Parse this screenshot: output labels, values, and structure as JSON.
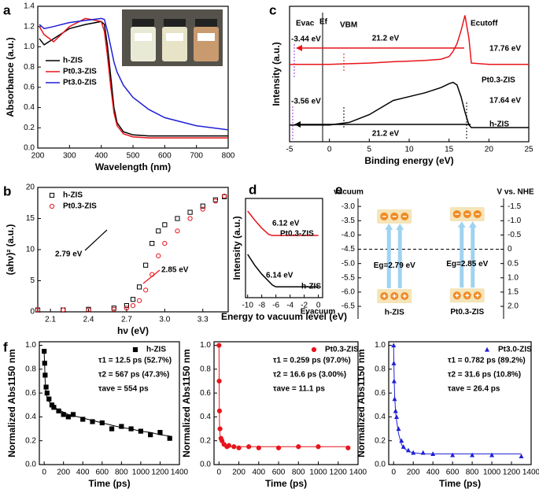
{
  "chart_data": [
    {
      "type": "line",
      "panel": "a",
      "xlabel": "Wavelength (nm)",
      "ylabel": "Absorbance (a.u.)",
      "x": [
        205,
        220,
        250,
        300,
        350,
        400,
        410,
        420,
        430,
        440,
        450,
        470,
        500,
        550,
        600,
        700,
        800
      ],
      "series": [
        {
          "name": "h-ZIS",
          "color": "#000000",
          "values": [
            1.08,
            1.02,
            1.08,
            1.18,
            1.22,
            1.25,
            1.22,
            1.0,
            0.7,
            0.4,
            0.25,
            0.16,
            0.13,
            0.12,
            0.12,
            0.12,
            0.12
          ]
        },
        {
          "name": "Pt0.3-ZIS",
          "color": "#e8141b",
          "values": [
            1.2,
            1.12,
            1.05,
            1.2,
            1.28,
            1.25,
            1.15,
            0.9,
            0.6,
            0.35,
            0.22,
            0.14,
            0.11,
            0.1,
            0.1,
            0.1,
            0.1
          ]
        },
        {
          "name": "Pt3.0-ZIS",
          "color": "#1f1fd6",
          "values": [
            1.22,
            1.18,
            1.2,
            1.24,
            1.26,
            1.28,
            1.27,
            1.15,
            1.0,
            0.85,
            0.75,
            0.62,
            0.5,
            0.38,
            0.3,
            0.22,
            0.18
          ]
        }
      ],
      "xlim": [
        200,
        800
      ],
      "xticks": [
        200,
        300,
        400,
        500,
        600,
        700,
        800
      ],
      "ylim": [
        0,
        1.4
      ],
      "yticks": [
        {
          "value": 0,
          "label": "0.0"
        },
        0.2,
        0.4,
        0.6,
        0.8,
        {
          "value": 1,
          "label": "1.0"
        },
        1.2,
        1.4
      ],
      "legend": "center left"
    },
    {
      "type": "scatter",
      "panel": "b",
      "xlabel": "hν (eV)",
      "ylabel": "(ahν)² (a.u.)",
      "x": [
        2.0,
        2.2,
        2.4,
        2.6,
        2.7,
        2.75,
        2.8,
        2.85,
        2.9,
        2.95,
        3.0,
        3.1,
        3.2,
        3.3,
        3.4,
        3.47
      ],
      "series": [
        {
          "name": "h-ZIS",
          "color": "#000000",
          "marker": "square-open",
          "values": [
            0.3,
            0.3,
            0.4,
            0.6,
            1.0,
            2.0,
            4.0,
            7.5,
            11,
            13,
            14,
            15,
            16,
            17,
            18,
            18.5
          ]
        },
        {
          "name": "Pt0.3-ZIS",
          "color": "#e8141b",
          "marker": "circle-open",
          "values": [
            0.3,
            0.3,
            0.3,
            0.4,
            0.6,
            1.0,
            1.8,
            3.5,
            6,
            9,
            11,
            13,
            15,
            16.5,
            17.8,
            18.6
          ]
        }
      ],
      "xlim": [
        2.0,
        3.5
      ],
      "xticks": [
        2.1,
        2.4,
        2.7,
        {
          "value": 3,
          "label": "3.0"
        },
        3.3
      ],
      "ylim": [
        0,
        20
      ],
      "yticks": [
        0,
        5,
        10,
        15,
        20
      ],
      "legend": "upper left",
      "annotations": [
        {
          "text": "2.79 eV",
          "color": "#000000"
        },
        {
          "text": "2.85 eV",
          "color": "#e8141b"
        }
      ]
    },
    {
      "type": "line",
      "panel": "c",
      "xlabel": "Binding energy (eV)",
      "ylabel": "Intensity (a.u.)",
      "x": [
        -5,
        0,
        2.5,
        5,
        8,
        10,
        12,
        14,
        15,
        15.5,
        16,
        16.5,
        17,
        17.5,
        17.8,
        20,
        25
      ],
      "series": [
        {
          "color": "#e8141b",
          "values": [
            6,
            6,
            6.05,
            6.1,
            6.2,
            6.25,
            6.3,
            6.4,
            6.6,
            7,
            7.6,
            8.6,
            9.8,
            8,
            6.1,
            6,
            6
          ]
        },
        {
          "color": "#000000",
          "values": [
            1.3,
            1.3,
            1.5,
            2.1,
            3.2,
            3.5,
            3.8,
            4.2,
            4.5,
            4.6,
            4.4,
            3.5,
            2.3,
            1.3,
            1.1,
            1.1,
            1.1
          ]
        }
      ],
      "xlim": [
        -5,
        25
      ],
      "xticks": [
        -5,
        0,
        5,
        10,
        15,
        20,
        25
      ],
      "ylim": [
        0,
        10.5
      ],
      "annotations": [
        {
          "text": "Evac",
          "color": "#9b30d9"
        },
        {
          "text": "Ef",
          "color": "#000000"
        },
        {
          "text": "VBM",
          "color": "#000000"
        },
        {
          "text": "Ecutoff",
          "color": "#000000"
        },
        {
          "text": "-3.44 eV",
          "color": "#9b30d9"
        },
        {
          "text": "21.2 eV",
          "color": "#000000"
        },
        {
          "text": "17.76 eV",
          "color": "#000000"
        },
        {
          "text": "Pt0.3-ZIS",
          "color": "#000000"
        },
        {
          "text": "-3.56 eV",
          "color": "#9b30d9"
        },
        {
          "text": "17.64 eV",
          "color": "#000000"
        },
        {
          "text": "21.2 eV",
          "color": "#000000"
        },
        {
          "text": "h-ZIS",
          "color": "#000000"
        }
      ]
    },
    {
      "type": "line",
      "panel": "d",
      "xlabel": "Energy to vacuum level (eV)",
      "ylabel": "Intensity (a.u.)",
      "x": [
        -10,
        -9,
        -8,
        -7,
        -6.5,
        -6,
        -5,
        -4,
        -2,
        0
      ],
      "series": [
        {
          "color": "#e8141b",
          "values": [
            9.6,
            8.6,
            7.7,
            7.0,
            6.9,
            6.9,
            6.9,
            6.9,
            6.9,
            6.9
          ]
        },
        {
          "color": "#000000",
          "values": [
            4.8,
            3.6,
            2.6,
            1.8,
            1.4,
            1.2,
            1.2,
            1.2,
            1.2,
            1.2
          ]
        }
      ],
      "xlim": [
        -10.3,
        0.6
      ],
      "xticks": [
        -10,
        -8,
        -6,
        -4,
        -2,
        0
      ],
      "ylim": [
        0,
        11
      ],
      "annotations": [
        {
          "text": "6.12 eV",
          "color": "#e8141b"
        },
        {
          "text": "Pt0.3-ZIS",
          "color": "#000000"
        },
        {
          "text": "6.14 eV",
          "color": "#000000"
        },
        {
          "text": "h-ZIS",
          "color": "#000000"
        },
        {
          "text": "Evacuum",
          "color": "#000000"
        }
      ]
    },
    {
      "type": "band",
      "panel": "e",
      "left_title": "vacuum",
      "right_title": "V vs. NHE",
      "categories": [
        "h-ZIS",
        "Pt0.3-ZIS"
      ],
      "cb": [
        -3.35,
        -3.27
      ],
      "vb": [
        -6.14,
        -6.12
      ],
      "gap_labels": [
        "Eg=2.79 eV",
        "Eg=2.85 eV"
      ],
      "ylim": [
        -6.94,
        -2.72
      ],
      "yticks": [
        {
          "value": -3,
          "label": "-3.0"
        },
        -3.5,
        {
          "value": -4,
          "label": "-4.0"
        },
        -4.5,
        {
          "value": -5,
          "label": "-5.0"
        },
        -5.5,
        {
          "value": -6,
          "label": "-6.0"
        },
        -6.5
      ],
      "y2lim": [
        2.44,
        -1.78
      ],
      "y2ticks": [
        -1.5,
        {
          "value": -1,
          "label": "-1.0"
        },
        -0.5,
        0,
        0.5,
        {
          "value": 1,
          "label": "1.0"
        },
        1.5,
        {
          "value": 2,
          "label": "2.0"
        }
      ]
    },
    {
      "type": "scatter",
      "panel": "f",
      "xlabel": "Time (ps)",
      "ylabel": "Normalized Abs1150 nm",
      "x": [
        0,
        5,
        10,
        20,
        30,
        50,
        80,
        100,
        150,
        200,
        250,
        300,
        400,
        500,
        600,
        700,
        800,
        900,
        1000,
        1100,
        1200,
        1300
      ],
      "series": [
        {
          "name": "h-ZIS",
          "color": "#000000",
          "marker": "square",
          "values": [
            0.95,
            0.85,
            0.75,
            0.65,
            0.6,
            0.55,
            0.5,
            0.48,
            0.45,
            0.42,
            0.4,
            0.42,
            0.38,
            0.36,
            0.35,
            0.3,
            0.32,
            0.3,
            0.28,
            0.25,
            0.27,
            0.22
          ],
          "fit": [
            0.95,
            0.82,
            0.7,
            0.6,
            0.56,
            0.53,
            0.5,
            0.48,
            0.46,
            0.44,
            0.42,
            0.41,
            0.39,
            0.37,
            0.35,
            0.33,
            0.31,
            0.3,
            0.28,
            0.27,
            0.25,
            0.24
          ]
        }
      ],
      "xlim": [
        -50,
        1400
      ],
      "xticks": [
        0,
        200,
        400,
        600,
        800,
        1000,
        1200,
        1400
      ],
      "ylim": [
        0,
        1.03
      ],
      "yticks": [
        {
          "value": 0,
          "label": "0.0"
        },
        0.2,
        0.4,
        0.6,
        0.8,
        {
          "value": 1,
          "label": "1.0"
        }
      ],
      "legend": "upper right",
      "annotations": [
        {
          "text": "τ1 = 12.5 ps (52.7%)",
          "color": "#000000"
        },
        {
          "text": "τ2 = 567 ps (47.3%)",
          "color": "#000000"
        },
        {
          "text": "τave = 554 ps",
          "color": "#000000"
        }
      ]
    },
    {
      "type": "scatter",
      "xlabel": "Time (ps)",
      "ylabel": "Normalized Abs1150 nm",
      "x": [
        0,
        2,
        5,
        10,
        20,
        30,
        50,
        80,
        100,
        150,
        200,
        300,
        400,
        600,
        800,
        1000,
        1300
      ],
      "series": [
        {
          "name": "Pt0.3-ZIS",
          "color": "#e8141b",
          "marker": "circle",
          "values": [
            1.0,
            0.7,
            0.45,
            0.3,
            0.22,
            0.2,
            0.17,
            0.15,
            0.16,
            0.15,
            0.14,
            0.15,
            0.14,
            0.14,
            0.15,
            0.15,
            0.14
          ],
          "fit": [
            1.0,
            0.6,
            0.35,
            0.25,
            0.2,
            0.18,
            0.16,
            0.155,
            0.15,
            0.15,
            0.15,
            0.15,
            0.15,
            0.15,
            0.15,
            0.15,
            0.15
          ]
        }
      ],
      "xlim": [
        -50,
        1400
      ],
      "xticks": [
        0,
        200,
        400,
        600,
        800,
        1000,
        1200,
        1400
      ],
      "ylim": [
        0,
        1.03
      ],
      "yticks": [
        {
          "value": 0,
          "label": "0.0"
        },
        0.2,
        0.4,
        0.6,
        0.8,
        {
          "value": 1,
          "label": "1.0"
        }
      ],
      "legend": "upper right",
      "annotations": [
        {
          "text": "τ1 = 0.259 ps (97.0%)",
          "color": "#000000"
        },
        {
          "text": "τ2 = 16.6 ps (3.00%)",
          "color": "#000000"
        },
        {
          "text": "τave = 11.1 ps",
          "color": "#000000"
        }
      ]
    },
    {
      "type": "scatter",
      "xlabel": "Time (ps)",
      "ylabel": "Normalized Abs1150 nm",
      "x": [
        0,
        2,
        5,
        10,
        20,
        30,
        50,
        80,
        100,
        150,
        200,
        300,
        400,
        600,
        800,
        1000,
        1300
      ],
      "series": [
        {
          "name": "Pt3.0-ZIS",
          "color": "#1f1fd6",
          "marker": "triangle",
          "values": [
            1.0,
            0.85,
            0.7,
            0.55,
            0.45,
            0.4,
            0.3,
            0.2,
            0.15,
            0.12,
            0.1,
            0.1,
            0.09,
            0.08,
            0.08,
            0.08,
            0.07
          ],
          "fit": [
            1.0,
            0.88,
            0.74,
            0.58,
            0.45,
            0.37,
            0.26,
            0.17,
            0.14,
            0.11,
            0.1,
            0.09,
            0.09,
            0.09,
            0.09,
            0.09,
            0.09
          ]
        }
      ],
      "xlim": [
        -50,
        1400
      ],
      "xticks": [
        0,
        200,
        400,
        600,
        800,
        1000,
        1200,
        1400
      ],
      "ylim": [
        0,
        1.03
      ],
      "yticks": [
        {
          "value": 0,
          "label": "0.0"
        },
        0.2,
        0.4,
        0.6,
        0.8,
        {
          "value": 1,
          "label": "1.0"
        }
      ],
      "legend": "upper right",
      "annotations": [
        {
          "text": "τ1 = 0.782 ps (89.2%)",
          "color": "#000000"
        },
        {
          "text": "τ2 = 31.6 ps (10.8%)",
          "color": "#000000"
        },
        {
          "text": "τave = 26.4 ps",
          "color": "#000000"
        }
      ]
    }
  ]
}
